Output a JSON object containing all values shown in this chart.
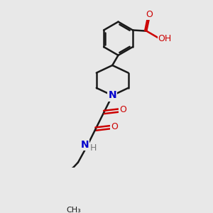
{
  "background_color": "#e8e8e8",
  "bond_color": "#1a1a1a",
  "bond_width": 1.8,
  "nitrogen_color": "#0000cd",
  "oxygen_color": "#cc0000",
  "figsize": [
    3.0,
    3.0
  ],
  "dpi": 100,
  "xlim": [
    0,
    10
  ],
  "ylim": [
    0,
    10
  ]
}
